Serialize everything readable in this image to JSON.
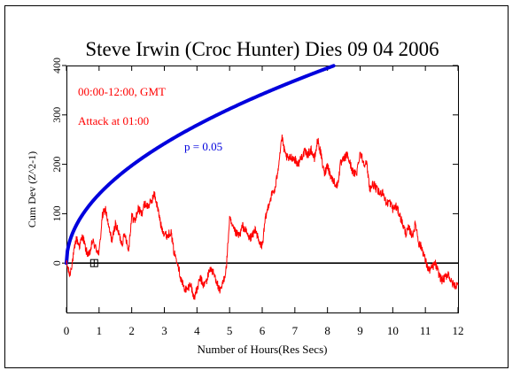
{
  "chart_data": {
    "type": "line",
    "title": "Steve Irwin (Croc Hunter) Dies 09 04 2006",
    "xlabel": "Number of Hours(Res Secs)",
    "ylabel": "Cum Dev (Z^2-1)",
    "xlim": [
      0,
      12
    ],
    "ylim": [
      -100,
      400
    ],
    "xticks": [
      0,
      1,
      2,
      3,
      4,
      5,
      6,
      7,
      8,
      9,
      10,
      11,
      12
    ],
    "yticks": [
      0,
      100,
      200,
      300,
      400
    ],
    "grid": false,
    "annotations": {
      "time_range": "00:00-12:00, GMT",
      "event": "Attack at 01:00",
      "p_label": "p = 0.05"
    },
    "event_marker": {
      "x": 0.85,
      "y": 0
    },
    "colors": {
      "series": "#ff0000",
      "envelope": "#0000dd",
      "baseline": "#000000",
      "annotation": "#ff0000",
      "p_label": "#0000dd"
    },
    "envelope": {
      "name": "p = 0.05",
      "formula": "1.645*sqrt(2*t)",
      "units_per_hour": 3600
    },
    "series": [
      {
        "x": [
          0,
          0.1,
          0.2,
          0.3,
          0.4,
          0.5,
          0.6,
          0.7,
          0.8,
          0.9,
          1.0,
          1.1,
          1.2,
          1.3,
          1.4,
          1.5,
          1.6,
          1.7,
          1.8,
          1.9,
          2.0,
          2.1,
          2.2,
          2.3,
          2.4,
          2.5,
          2.6,
          2.7,
          2.8,
          2.9,
          3.0,
          3.1,
          3.2,
          3.3,
          3.4,
          3.5,
          3.6,
          3.7,
          3.8,
          3.9,
          4.0,
          4.1,
          4.2,
          4.3,
          4.4,
          4.5,
          4.6,
          4.7,
          4.8,
          4.9,
          5.0,
          5.1,
          5.2,
          5.3,
          5.4,
          5.5,
          5.6,
          5.7,
          5.8,
          5.9,
          6.0,
          6.1,
          6.2,
          6.3,
          6.4,
          6.5,
          6.6,
          6.7,
          6.8,
          6.9,
          7.0,
          7.1,
          7.2,
          7.3,
          7.4,
          7.5,
          7.6,
          7.7,
          7.8,
          7.9,
          8.0,
          8.1,
          8.2,
          8.3,
          8.4,
          8.5,
          8.6,
          8.7,
          8.8,
          8.9,
          9.0,
          9.1,
          9.2,
          9.3,
          9.4,
          9.5,
          9.6,
          9.7,
          9.8,
          9.9,
          10.0,
          10.1,
          10.2,
          10.3,
          10.4,
          10.5,
          10.6,
          10.7,
          10.8,
          10.9,
          11.0,
          11.1,
          11.2,
          11.3,
          11.4,
          11.5,
          11.6,
          11.7,
          11.8,
          11.9,
          12.0
        ],
        "y": [
          0,
          -25,
          10,
          50,
          35,
          55,
          25,
          15,
          45,
          30,
          20,
          95,
          110,
          70,
          45,
          80,
          60,
          40,
          60,
          25,
          95,
          85,
          110,
          100,
          120,
          115,
          125,
          140,
          110,
          75,
          60,
          55,
          65,
          20,
          5,
          -30,
          -50,
          -55,
          -40,
          -70,
          -55,
          -30,
          -45,
          -35,
          -10,
          -20,
          -35,
          -60,
          -40,
          -10,
          90,
          70,
          60,
          55,
          75,
          65,
          50,
          55,
          70,
          40,
          35,
          90,
          120,
          140,
          150,
          200,
          255,
          220,
          210,
          215,
          210,
          200,
          215,
          225,
          220,
          230,
          210,
          250,
          220,
          180,
          200,
          175,
          165,
          155,
          200,
          210,
          220,
          200,
          180,
          185,
          225,
          205,
          200,
          150,
          160,
          150,
          140,
          145,
          120,
          125,
          110,
          115,
          100,
          80,
          60,
          70,
          55,
          80,
          40,
          30,
          5,
          -15,
          -10,
          0,
          -20,
          -35,
          -30,
          -20,
          -40,
          -45,
          -45
        ]
      }
    ]
  }
}
